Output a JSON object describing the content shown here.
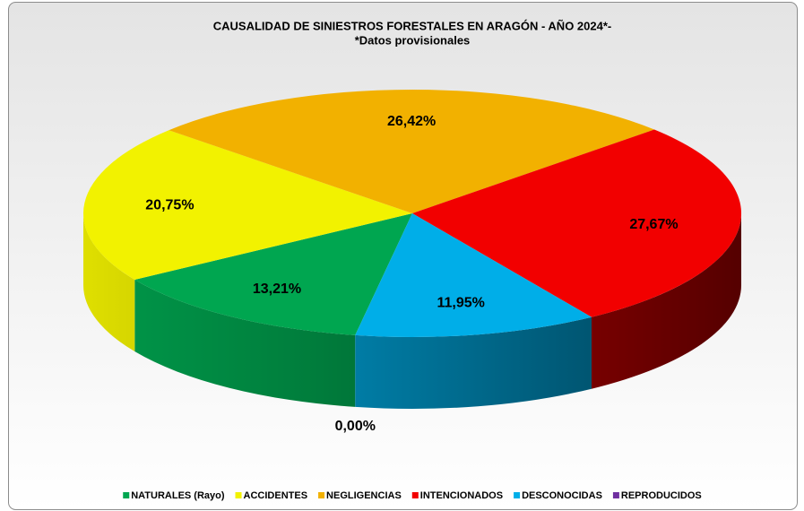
{
  "chart_data": {
    "type": "pie3d",
    "title": "CAUSALIDAD DE SINIESTROS FORESTALES EN ARAGÓN  - AÑO 2024*-",
    "subtitle": "*Datos provisionales",
    "categories": [
      "NATURALES (Rayo)",
      "ACCIDENTES",
      "NEGLIGENCIAS",
      "INTENCIONADOS",
      "DESCONOCIDAS",
      "REPRODUCIDOS"
    ],
    "values": [
      13.21,
      20.75,
      26.42,
      27.67,
      11.95,
      0
    ],
    "value_labels": [
      "13,21%",
      "20,75%",
      "26,42%",
      "27,67%",
      "11,95%",
      "0,00%"
    ],
    "colors": [
      "#00a650",
      "#f2f200",
      "#f2b100",
      "#f20000",
      "#00aee8",
      "#7030a0"
    ],
    "legend": "bottom"
  }
}
